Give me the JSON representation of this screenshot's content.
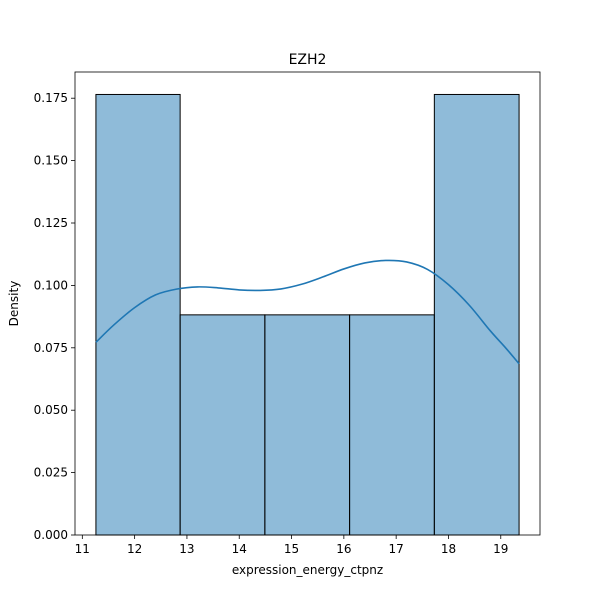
{
  "chart_data": {
    "type": "bar",
    "title": "EZH2",
    "xlabel": "expression_energy_ctpnz",
    "ylabel": "Density",
    "xlim": [
      10.86,
      19.75
    ],
    "ylim": [
      0,
      0.1855
    ],
    "xticks": [
      11,
      12,
      13,
      14,
      15,
      16,
      17,
      18,
      19
    ],
    "yticks": [
      0.0,
      0.025,
      0.05,
      0.075,
      0.1,
      0.125,
      0.15,
      0.175
    ],
    "ytick_labels": [
      "0.000",
      "0.025",
      "0.050",
      "0.075",
      "0.100",
      "0.125",
      "0.150",
      "0.175"
    ],
    "bins": [
      {
        "x0": 11.26,
        "x1": 12.87,
        "density": 0.1765
      },
      {
        "x0": 12.87,
        "x1": 14.49,
        "density": 0.0882
      },
      {
        "x0": 14.49,
        "x1": 16.11,
        "density": 0.0882
      },
      {
        "x0": 16.11,
        "x1": 17.73,
        "density": 0.0882
      },
      {
        "x0": 17.73,
        "x1": 19.35,
        "density": 0.1765
      }
    ],
    "kde": {
      "x": [
        11.26,
        11.6,
        12.0,
        12.4,
        12.8,
        13.2,
        13.6,
        14.0,
        14.4,
        14.8,
        15.2,
        15.6,
        16.0,
        16.4,
        16.8,
        17.2,
        17.6,
        18.0,
        18.4,
        18.8,
        19.1,
        19.35
      ],
      "y": [
        0.0772,
        0.0841,
        0.0911,
        0.0962,
        0.0985,
        0.0994,
        0.099,
        0.0982,
        0.098,
        0.0986,
        0.1005,
        0.1034,
        0.1066,
        0.109,
        0.11,
        0.1094,
        0.1064,
        0.1003,
        0.092,
        0.0818,
        0.0748,
        0.0686
      ]
    },
    "grid": false,
    "legend": false,
    "colors": {
      "bar_fill": "#1f77b4",
      "bar_fill_opacity": 0.5,
      "bar_edge": "#000000",
      "kde_line": "#1f77b4"
    }
  }
}
